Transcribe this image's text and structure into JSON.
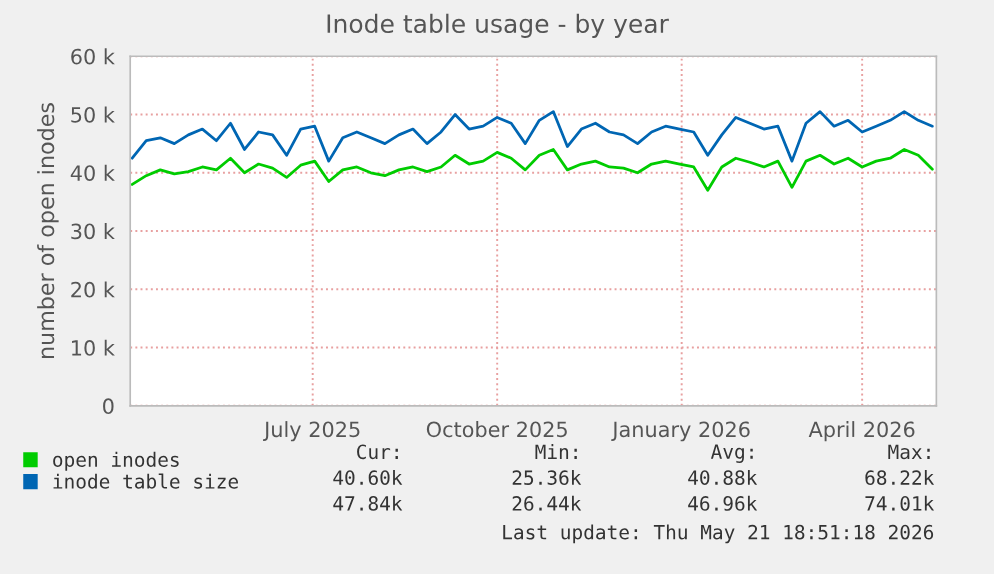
{
  "chart_data": {
    "type": "line",
    "title": "Inode table usage - by year",
    "ylabel": "number of open inodes",
    "x": [
      "2025-04-17",
      "2025-04-24",
      "2025-05-01",
      "2025-05-08",
      "2025-05-15",
      "2025-05-22",
      "2025-05-29",
      "2025-06-05",
      "2025-06-12",
      "2025-06-19",
      "2025-06-26",
      "2025-07-03",
      "2025-07-10",
      "2025-07-17",
      "2025-07-24",
      "2025-07-31",
      "2025-08-07",
      "2025-08-14",
      "2025-08-21",
      "2025-08-28",
      "2025-09-04",
      "2025-09-11",
      "2025-09-18",
      "2025-09-25",
      "2025-10-02",
      "2025-10-09",
      "2025-10-16",
      "2025-10-23",
      "2025-10-30",
      "2025-11-06",
      "2025-11-13",
      "2025-11-20",
      "2025-11-27",
      "2025-12-04",
      "2025-12-11",
      "2025-12-18",
      "2025-12-25",
      "2026-01-01",
      "2026-01-08",
      "2026-01-15",
      "2026-01-22",
      "2026-01-29",
      "2026-02-05",
      "2026-02-12",
      "2026-02-19",
      "2026-02-26",
      "2026-03-05",
      "2026-03-12",
      "2026-03-19",
      "2026-03-26",
      "2026-04-02",
      "2026-04-09",
      "2026-04-16",
      "2026-04-23",
      "2026-04-30",
      "2026-05-07",
      "2026-05-14",
      "2026-05-21"
    ],
    "series": [
      {
        "name": "open inodes",
        "color": "#00cc00",
        "values": [
          38000,
          39500,
          40500,
          39800,
          40200,
          41000,
          40500,
          42500,
          40000,
          41500,
          40800,
          39200,
          41300,
          42000,
          38500,
          40500,
          41000,
          40000,
          39500,
          40500,
          41000,
          40200,
          41000,
          43000,
          41500,
          42000,
          43500,
          42500,
          40500,
          43000,
          44000,
          40500,
          41500,
          42000,
          41000,
          40800,
          40000,
          41500,
          42000,
          41500,
          41000,
          37000,
          41000,
          42500,
          41800,
          41000,
          42000,
          37500,
          42000,
          43000,
          41500,
          42500,
          41000,
          42000,
          42500,
          44000,
          43000,
          40600
        ]
      },
      {
        "name": "inode table size",
        "color": "#0066b3",
        "values": [
          42500,
          45500,
          46000,
          45000,
          46500,
          47500,
          45500,
          48500,
          44000,
          47000,
          46500,
          43000,
          47500,
          48000,
          42000,
          46000,
          47000,
          46000,
          45000,
          46500,
          47500,
          45000,
          47000,
          50000,
          47500,
          48000,
          49500,
          48500,
          45000,
          49000,
          50500,
          44500,
          47500,
          48500,
          47000,
          46500,
          45000,
          47000,
          48000,
          47500,
          47000,
          43000,
          46500,
          49500,
          48500,
          47500,
          48000,
          42000,
          48500,
          50500,
          48000,
          49000,
          47000,
          48000,
          49000,
          50500,
          49000,
          48000
        ]
      }
    ],
    "xlim": [
      "2025-04-16",
      "2026-05-23"
    ],
    "xticks": [
      {
        "value": "2025-07-16",
        "label": "July 2025"
      },
      {
        "value": "2025-10-16",
        "label": "October 2025"
      },
      {
        "value": "2026-01-16",
        "label": "January 2026"
      },
      {
        "value": "2026-04-16",
        "label": "April 2026"
      }
    ],
    "ylim": [
      0,
      60000
    ],
    "yticks": [
      {
        "value": 0,
        "label": "0"
      },
      {
        "value": 10000,
        "label": "10 k"
      },
      {
        "value": 20000,
        "label": "20 k"
      },
      {
        "value": 30000,
        "label": "30 k"
      },
      {
        "value": 40000,
        "label": "40 k"
      },
      {
        "value": 50000,
        "label": "50 k"
      },
      {
        "value": 60000,
        "label": "60 k"
      }
    ],
    "grid": true,
    "legend": "bottom left",
    "marker": "none",
    "line_style": "solid",
    "annotations": [
      "Cur:",
      "Min:",
      "Avg:",
      "Max:",
      "40.60k",
      "25.36k",
      "40.88k",
      "68.22k",
      "47.84k",
      "26.44k",
      "46.96k",
      "74.01k",
      "Last update: Thu May 21 18:51:18 2026"
    ]
  }
}
